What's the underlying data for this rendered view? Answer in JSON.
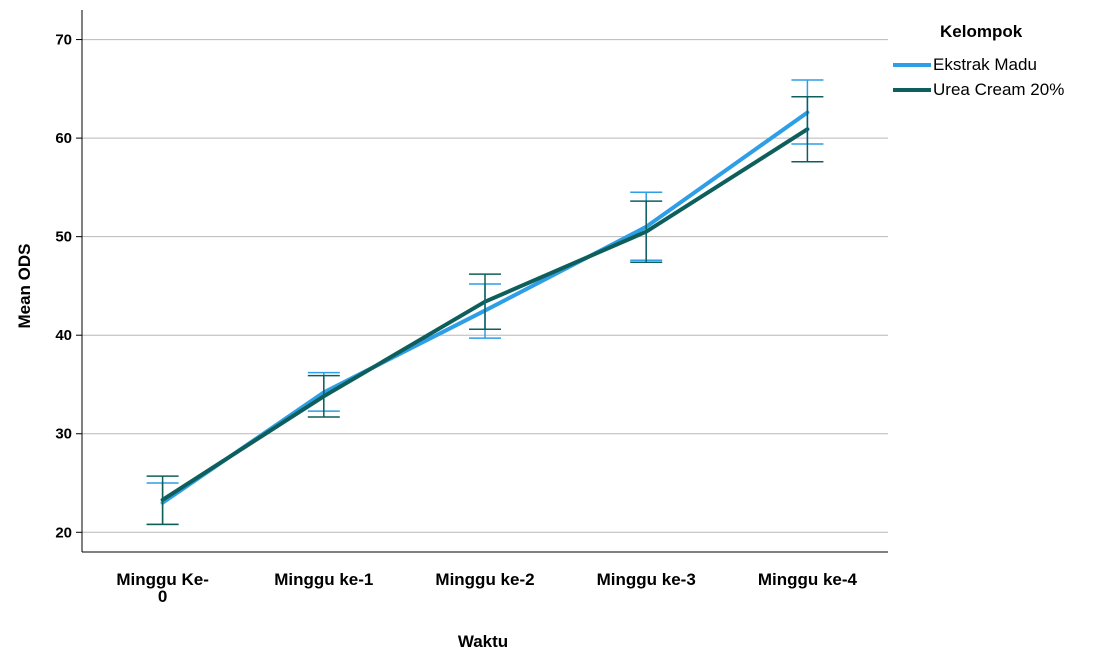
{
  "chart_data": {
    "type": "line",
    "xlabel": "Waktu",
    "ylabel": "Mean ODS",
    "categories": [
      [
        "Minggu Ke-",
        "0"
      ],
      [
        "Minggu ke-1"
      ],
      [
        "Minggu ke-2"
      ],
      [
        "Minggu ke-3"
      ],
      [
        "Minggu ke-4"
      ]
    ],
    "ylim": [
      18,
      73
    ],
    "yticks": [
      20,
      30,
      40,
      50,
      60,
      70
    ],
    "grid": true,
    "legend": {
      "title": "Kelompok",
      "placement": "right"
    },
    "series": [
      {
        "name": "Ekstrak Madu",
        "color": "#2e9ee6",
        "values": [
          23.0,
          34.2,
          42.5,
          51.0,
          62.6
        ],
        "error_low": [
          20.8,
          32.3,
          39.7,
          47.6,
          59.4
        ],
        "error_high": [
          25.0,
          36.2,
          45.2,
          54.5,
          65.9
        ]
      },
      {
        "name": "Urea Cream 20%",
        "color": "#0e5f5c",
        "values": [
          23.3,
          33.8,
          43.4,
          50.5,
          60.9
        ],
        "error_low": [
          20.8,
          31.7,
          40.6,
          47.4,
          57.6
        ],
        "error_high": [
          25.7,
          35.9,
          46.2,
          53.6,
          64.2
        ]
      }
    ]
  }
}
